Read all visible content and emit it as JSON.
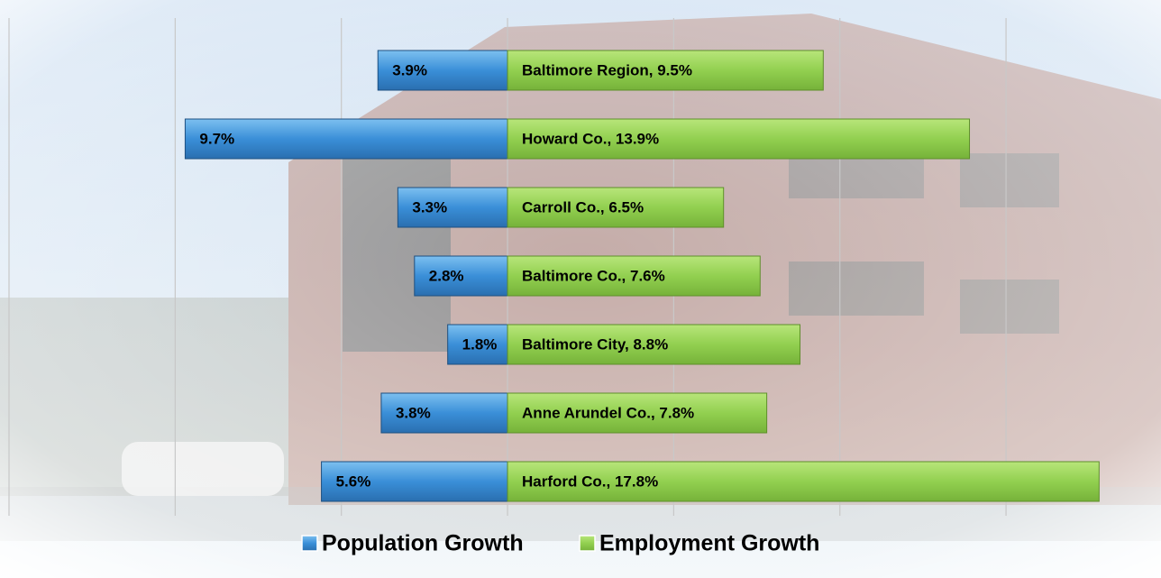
{
  "chart_data": {
    "type": "diverging-bar",
    "series": [
      {
        "name": "Population Growth",
        "color": "#3a8fd8",
        "direction": "left",
        "values": [
          3.9,
          9.7,
          3.3,
          2.8,
          1.8,
          3.8,
          5.6
        ],
        "value_labels": [
          "3.9%",
          "9.7%",
          "3.3%",
          "2.8%",
          "1.8%",
          "3.8%",
          "5.6%"
        ]
      },
      {
        "name": "Employment Growth",
        "color": "#92d050",
        "direction": "right",
        "values": [
          9.5,
          13.9,
          6.5,
          7.6,
          8.8,
          7.8,
          17.8
        ],
        "value_labels": [
          "Baltimore Region, 9.5%",
          "Howard Co., 13.9%",
          "Carroll Co., 6.5%",
          "Baltimore Co., 7.6%",
          "Baltimore City, 8.8%",
          "Anne Arundel Co., 7.8%",
          "Harford Co., 17.8%"
        ]
      }
    ],
    "xlim": [
      -15,
      19.5
    ],
    "xticks": [
      -15,
      -10,
      -5,
      0,
      5,
      10,
      15
    ],
    "grid": true
  }
}
